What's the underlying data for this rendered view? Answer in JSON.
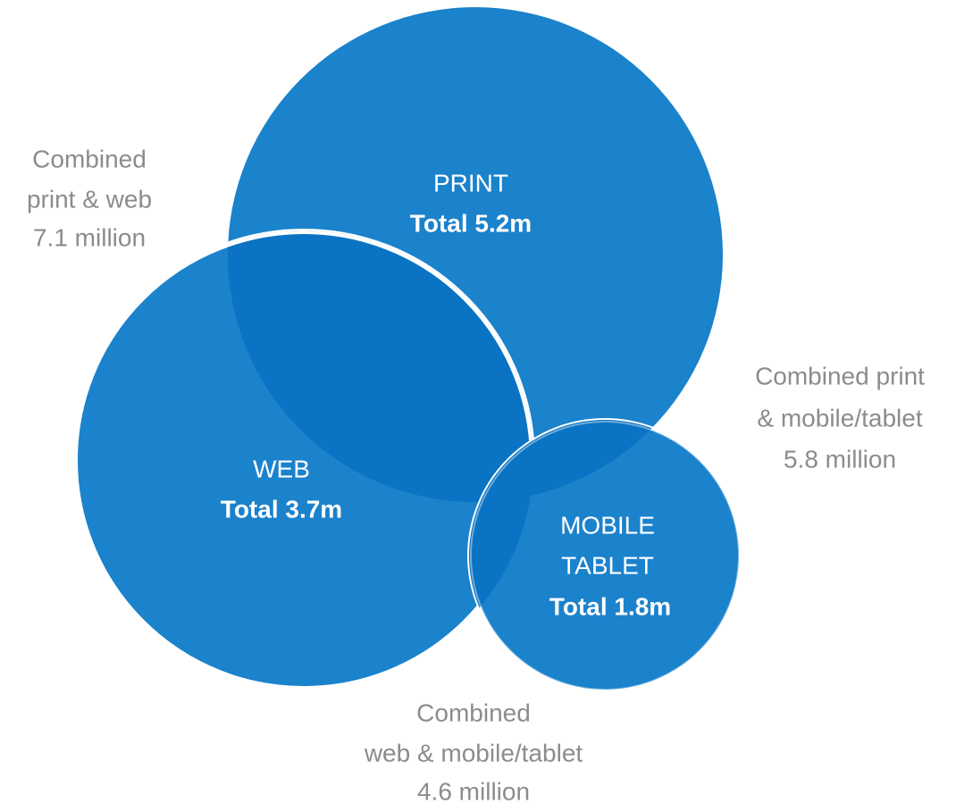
{
  "sets": [
    {
      "lines": [
        "PRINT"
      ],
      "total": "Total 5.2m"
    },
    {
      "lines": [
        "WEB"
      ],
      "total": "Total 3.7m"
    },
    {
      "lines": [
        "MOBILE",
        "TABLET"
      ],
      "total": "Total 1.8m"
    }
  ],
  "combined": [
    {
      "lines": [
        "Combined",
        "print & web",
        "7.1 million"
      ]
    },
    {
      "lines": [
        "Combined print",
        "& mobile/tablet",
        "5.8 million"
      ]
    },
    {
      "lines": [
        "Combined",
        "web & mobile/tablet",
        "4.6 million"
      ]
    }
  ]
}
